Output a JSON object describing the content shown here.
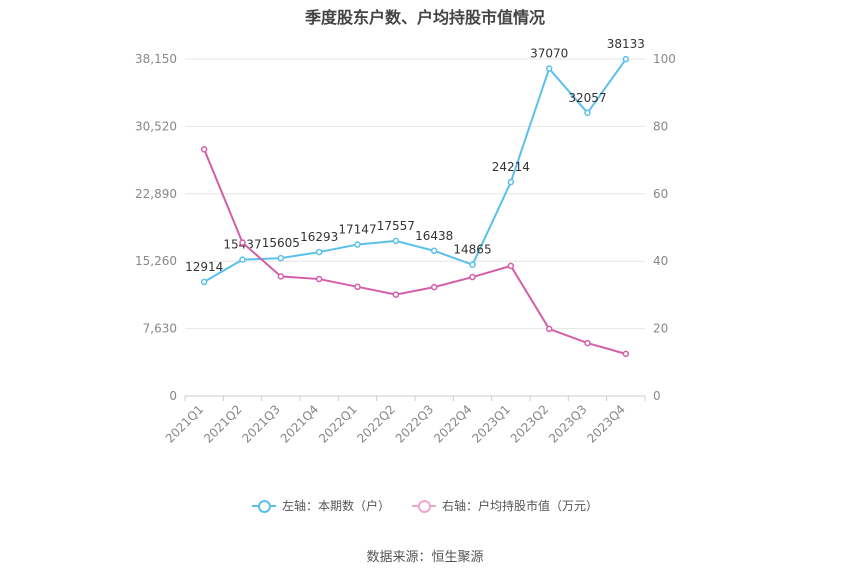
{
  "title": "季度股东户数、户均持股市值情况",
  "source": "数据来源：恒生聚源",
  "colors": {
    "left_series": "#5bc0eb",
    "right_series": "#d45fa8",
    "grid": "#e6e6e6"
  },
  "chart_data": {
    "type": "line",
    "categories": [
      "2021Q1",
      "2021Q2",
      "2021Q3",
      "2021Q4",
      "2022Q1",
      "2022Q2",
      "2022Q3",
      "2022Q4",
      "2023Q1",
      "2023Q2",
      "2023Q3",
      "2023Q4"
    ],
    "left_axis": {
      "ticks": [
        "0",
        "7,630",
        "15,260",
        "22,890",
        "30,520",
        "38,150"
      ],
      "range": [
        0,
        38150
      ]
    },
    "right_axis": {
      "ticks": [
        "0",
        "20",
        "40",
        "60",
        "80",
        "100"
      ],
      "range": [
        0,
        100
      ]
    },
    "series": [
      {
        "name": "左轴：本期数（户）",
        "axis": "left",
        "values": [
          12914,
          15437,
          15605,
          16293,
          17147,
          17557,
          16438,
          14865,
          24214,
          37070,
          32057,
          38133
        ],
        "labels": [
          "12914",
          "15437",
          "15605",
          "16293",
          "17147",
          "17557",
          "16438",
          "14865",
          "24214",
          "37070",
          "32057",
          "38133"
        ]
      },
      {
        "name": "右轴：户均持股市值（万元）",
        "axis": "right",
        "values": [
          73.2,
          45.5,
          35.5,
          34.7,
          32.4,
          30.1,
          32.3,
          35.3,
          38.6,
          19.9,
          15.7,
          12.5
        ]
      }
    ],
    "grid": true,
    "legend": "bottom-center"
  }
}
